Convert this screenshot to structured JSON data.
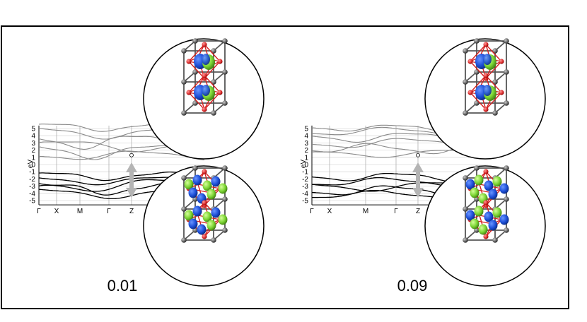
{
  "ylabel": "eV",
  "y_ticks": [
    "5",
    "4",
    "3",
    "2",
    "1",
    "0",
    "-1",
    "-2",
    "-3",
    "-4",
    "-5"
  ],
  "k_labels": [
    "Γ",
    "X",
    "M",
    "Γ",
    "Z"
  ],
  "panels": [
    {
      "value": "0.01"
    },
    {
      "value": "0.09"
    }
  ],
  "colors": {
    "conduction_band": "#8a8a8a",
    "valence_band": "#000000",
    "octahedron": "#d42020",
    "oxygen": "#d42020",
    "cation": "#1d4fd8",
    "orbital_lobe": "#7ad432",
    "lattice_atom": "#555555",
    "arrow": "#b4b4b4"
  }
}
